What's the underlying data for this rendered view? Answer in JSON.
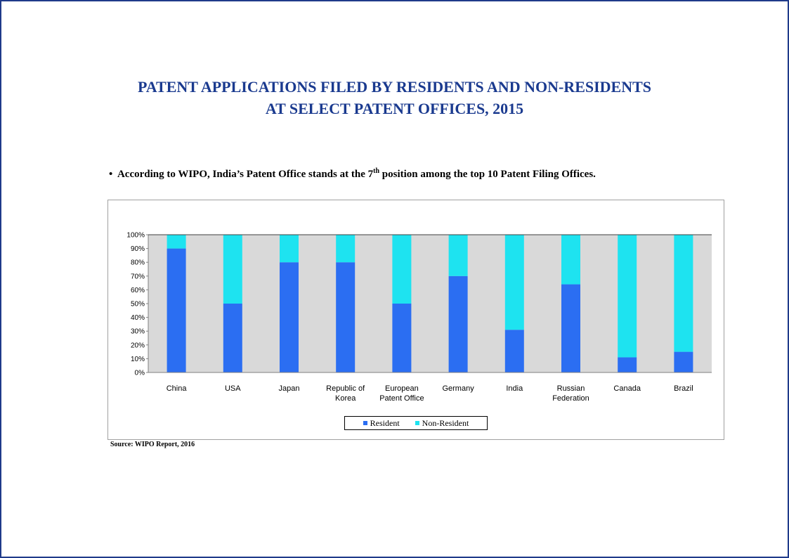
{
  "title": {
    "line1": "PATENT APPLICATIONS FILED BY RESIDENTS AND NON-RESIDENTS",
    "line2": "AT SELECT  PATENT OFFICES, 2015"
  },
  "bullet": {
    "marker": "•",
    "text_before": "According to WIPO, India’s Patent Office stands at the 7",
    "superscript": "th",
    "text_after": " position among the top 10 Patent Filing Offices."
  },
  "source": "Source: WIPO Report, 2016",
  "colors": {
    "resident": "#2b6ef2",
    "non_resident": "#1ee3f0",
    "plot_background": "#d9d9d9",
    "title": "#1a3a8f",
    "frame": "#1f3a8a"
  },
  "chart_data": {
    "type": "bar",
    "stacked": "percent",
    "categories": [
      "China",
      "USA",
      "Japan",
      "Republic of Korea",
      "European Patent Office",
      "Germany",
      "India",
      "Russian Federation",
      "Canada",
      "Brazil"
    ],
    "category_lines": [
      [
        "China"
      ],
      [
        "USA"
      ],
      [
        "Japan"
      ],
      [
        "Republic of",
        "Korea"
      ],
      [
        "European",
        "Patent Office"
      ],
      [
        "Germany"
      ],
      [
        "India"
      ],
      [
        "Russian",
        "Federation"
      ],
      [
        "Canada"
      ],
      [
        "Brazil"
      ]
    ],
    "series": [
      {
        "name": "Resident",
        "values": [
          90,
          50,
          80,
          80,
          50,
          70,
          31,
          64,
          11,
          15
        ]
      },
      {
        "name": "Non-Resident",
        "values": [
          10,
          50,
          20,
          20,
          50,
          30,
          69,
          36,
          89,
          85
        ]
      }
    ],
    "ylim": [
      0,
      100
    ],
    "yticks": [
      "0%",
      "10%",
      "20%",
      "30%",
      "40%",
      "50%",
      "60%",
      "70%",
      "80%",
      "90%",
      "100%"
    ],
    "legend_placement": "bottom",
    "grid": false
  }
}
